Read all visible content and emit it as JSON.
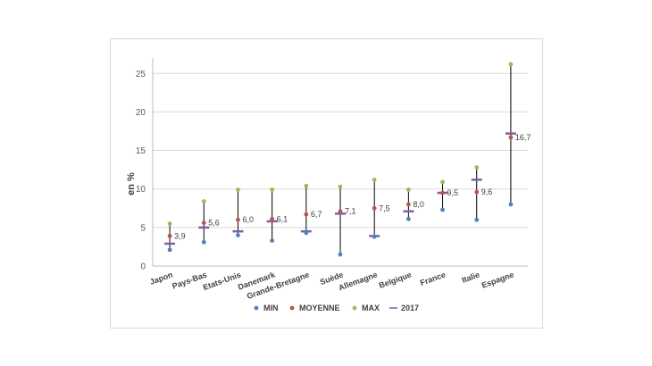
{
  "chart_data": {
    "type": "scatter",
    "ylabel": "en %",
    "xlabel": "",
    "ylim": [
      0,
      27
    ],
    "yticks": [
      0,
      5,
      10,
      15,
      20,
      25
    ],
    "grid": true,
    "legend_position": "bottom",
    "categories": [
      "Japon",
      "Pays-Bas",
      "Etats-Unis",
      "Danemark",
      "Grande-Bretagne",
      "Suède",
      "Allemagne",
      "Belgique",
      "France",
      "Italie",
      "Espagne"
    ],
    "series": [
      {
        "name": "MIN",
        "color": "#4f81bd",
        "marker": "circle",
        "values": [
          2.1,
          3.1,
          4.0,
          3.3,
          4.3,
          1.5,
          3.8,
          6.1,
          7.3,
          6.0,
          8.0
        ]
      },
      {
        "name": "MOYENNE",
        "color": "#c0504d",
        "marker": "circle",
        "values": [
          3.9,
          5.6,
          6.0,
          6.1,
          6.7,
          7.1,
          7.5,
          8.0,
          9.5,
          9.6,
          16.7
        ]
      },
      {
        "name": "MAX",
        "color": "#9bbb59",
        "marker": "circle",
        "values": [
          5.5,
          8.4,
          9.9,
          9.9,
          10.4,
          10.3,
          11.2,
          9.9,
          10.9,
          12.8,
          26.2
        ]
      },
      {
        "name": "2017",
        "color": "#7f5fa8",
        "marker": "dash",
        "values": [
          2.9,
          5.0,
          4.5,
          5.8,
          4.5,
          6.8,
          3.9,
          7.1,
          9.5,
          11.2,
          17.2
        ]
      }
    ],
    "data_labels": [
      "3,9",
      "5,6",
      "6,0",
      "6,1",
      "6,7",
      "7,1",
      "7,5",
      "8,0",
      "9,5",
      "9,6",
      "16,7"
    ]
  }
}
